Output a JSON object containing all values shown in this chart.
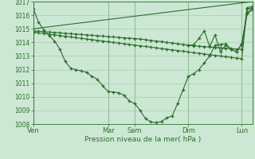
{
  "bg_color": "#cce8d4",
  "grid_color": "#aaccaa",
  "line_color": "#2d6e2d",
  "xlabel": "Pression niveau de la mer( hPa )",
  "ylim": [
    1008,
    1017
  ],
  "yticks": [
    1008,
    1009,
    1010,
    1011,
    1012,
    1013,
    1014,
    1015,
    1016,
    1017
  ],
  "xtick_labels": [
    "Ven",
    "Mar",
    "Sam",
    "Dim",
    "Lun"
  ],
  "xtick_positions": [
    0,
    14,
    19,
    29,
    39
  ],
  "vline_positions": [
    0,
    14,
    19,
    29,
    39
  ],
  "total_points": 42,
  "series_main": {
    "x": [
      0,
      1,
      2,
      3,
      4,
      5,
      6,
      7,
      8,
      9,
      10,
      11,
      12,
      13,
      14,
      15,
      16,
      17,
      18,
      19,
      20,
      21,
      22,
      23,
      24,
      25,
      26,
      27,
      28,
      29,
      30,
      31,
      32,
      33,
      34,
      35,
      36,
      37,
      38,
      39,
      40,
      41
    ],
    "y": [
      1016.5,
      1015.5,
      1014.9,
      1014.5,
      1014.1,
      1013.5,
      1012.6,
      1012.1,
      1012.0,
      1011.9,
      1011.8,
      1011.5,
      1011.3,
      1010.8,
      1010.4,
      1010.35,
      1010.3,
      1010.1,
      1009.7,
      1009.5,
      1009.0,
      1008.4,
      1008.15,
      1008.1,
      1008.2,
      1008.45,
      1008.6,
      1009.5,
      1010.5,
      1011.5,
      1011.7,
      1012.0,
      1012.5,
      1013.0,
      1013.8,
      1013.85,
      1013.9,
      1013.5,
      1013.3,
      1013.9,
      1016.1,
      1016.4
    ]
  },
  "series_top": {
    "x": [
      0,
      41
    ],
    "y": [
      1015.0,
      1017.0
    ]
  },
  "series_mid1": {
    "x": [
      0,
      1,
      2,
      3,
      4,
      5,
      6,
      7,
      8,
      9,
      10,
      11,
      12,
      13,
      14,
      15,
      16,
      17,
      18,
      19,
      20,
      21,
      22,
      23,
      24,
      25,
      26,
      27,
      28,
      29,
      30,
      31,
      32,
      33,
      34,
      35,
      36,
      37,
      38,
      39,
      40,
      41
    ],
    "y": [
      1014.85,
      1014.82,
      1014.79,
      1014.76,
      1014.73,
      1014.7,
      1014.67,
      1014.64,
      1014.61,
      1014.58,
      1014.55,
      1014.52,
      1014.49,
      1014.46,
      1014.43,
      1014.4,
      1014.37,
      1014.34,
      1014.31,
      1014.28,
      1014.25,
      1014.2,
      1014.15,
      1014.1,
      1014.05,
      1014.0,
      1013.95,
      1013.9,
      1013.85,
      1013.8,
      1013.75,
      1013.72,
      1013.69,
      1013.66,
      1013.63,
      1013.6,
      1013.57,
      1013.54,
      1013.51,
      1013.48,
      1016.55,
      1016.65
    ]
  },
  "series_mid2": {
    "x": [
      0,
      1,
      2,
      3,
      4,
      5,
      6,
      7,
      8,
      9,
      10,
      11,
      12,
      13,
      14,
      15,
      16,
      17,
      18,
      19,
      20,
      21,
      22,
      23,
      24,
      25,
      26,
      27,
      28,
      29,
      30,
      31,
      32,
      33,
      34,
      35,
      36,
      37,
      38,
      39,
      40,
      41
    ],
    "y": [
      1014.75,
      1014.7,
      1014.65,
      1014.6,
      1014.55,
      1014.5,
      1014.45,
      1014.4,
      1014.35,
      1014.3,
      1014.25,
      1014.2,
      1014.15,
      1014.1,
      1014.05,
      1014.0,
      1013.95,
      1013.9,
      1013.85,
      1013.8,
      1013.75,
      1013.7,
      1013.65,
      1013.6,
      1013.55,
      1013.5,
      1013.45,
      1013.4,
      1013.35,
      1013.3,
      1013.25,
      1013.2,
      1013.15,
      1013.1,
      1013.05,
      1013.0,
      1012.95,
      1012.9,
      1012.85,
      1012.8,
      1016.45,
      1016.55
    ]
  },
  "series_zigzag": {
    "x": [
      29,
      30,
      31,
      32,
      33,
      34,
      35,
      36,
      37,
      38,
      39,
      40,
      41
    ],
    "y": [
      1013.8,
      1013.82,
      1014.3,
      1014.85,
      1013.7,
      1014.55,
      1013.3,
      1013.8,
      1013.5,
      1013.3,
      1013.85,
      1016.2,
      1016.5
    ]
  }
}
